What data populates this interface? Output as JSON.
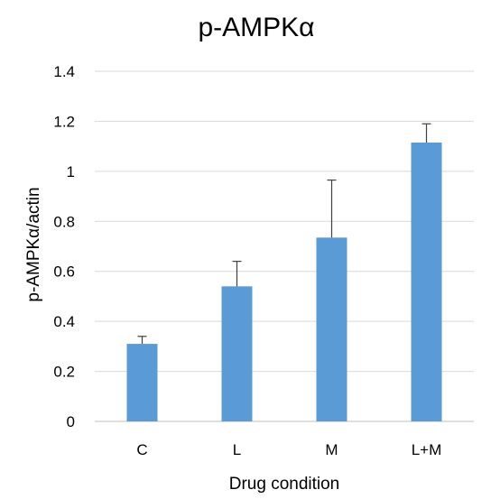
{
  "chart_data": {
    "type": "bar",
    "title": "p-AMPKα",
    "xlabel": "Drug condition",
    "ylabel": "p-AMPKα/actin",
    "categories": [
      "C",
      "L",
      "M",
      "L+M"
    ],
    "values": [
      0.31,
      0.54,
      0.735,
      1.115
    ],
    "error_plus": [
      0.03,
      0.1,
      0.23,
      0.075
    ],
    "ylim": [
      0,
      1.4
    ],
    "yticks": [
      0,
      0.2,
      0.4,
      0.6,
      0.8,
      1,
      1.2,
      1.4
    ],
    "ytick_labels": [
      "0",
      "0.2",
      "0.4",
      "0.6",
      "0.8",
      "1",
      "1.2",
      "1.4"
    ],
    "bar_color": "#5b9bd5",
    "grid": true,
    "legend": "none"
  }
}
